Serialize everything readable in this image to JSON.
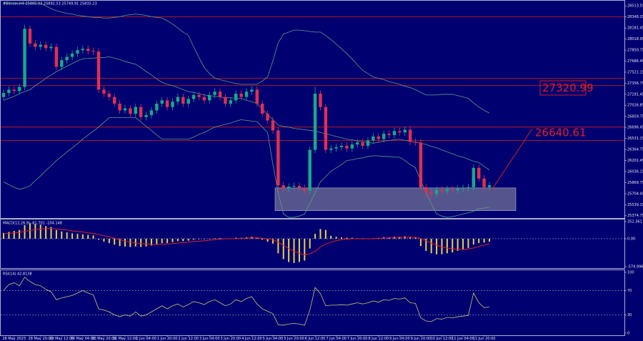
{
  "chart_data": [
    {
      "type": "candlestick",
      "title": "#Bitcoin,H4  25805.93 25892.53 25749.91 25835.23",
      "up_color": "#1aa88a",
      "down_color": "#e0304e",
      "band_color": "#5e9c82",
      "level_color": "#c01818",
      "zone_color": "#9a9aa8",
      "ylim": [
        25340,
        28600
      ],
      "yticks": [
        28513.55,
        28348.25,
        28181.45,
        28018.95,
        27850.75,
        27686.45,
        27521.15,
        27356.75,
        27191.45,
        27026.85,
        26859.75,
        26696.45,
        26531.15,
        26364.75,
        26201.45,
        26036.15,
        25869.75,
        25704.45,
        25539.15,
        25374.75
      ],
      "levels": [
        28350,
        27430,
        27320.99,
        26700,
        26500
      ],
      "zone": [
        25450,
        25790
      ],
      "annotations": [
        "27320.99",
        "26640.61"
      ],
      "open": [
        27150,
        27210,
        27260,
        27240,
        27300,
        28170,
        27950,
        27900,
        27930,
        27880,
        27900,
        27600,
        27700,
        27750,
        27800,
        27850,
        27870,
        27840,
        27830,
        27260,
        27200,
        27150,
        27050,
        26950,
        26980,
        26900,
        27000,
        26850,
        26880,
        26950,
        27050,
        27100,
        27000,
        27080,
        27150,
        27050,
        27120,
        27180,
        27150,
        27100,
        27180,
        27230,
        27150,
        27050,
        27100,
        27200,
        27150,
        27230,
        27260,
        27050,
        26900,
        26800,
        26650,
        25830,
        25780,
        25810,
        25820,
        25790,
        25750,
        26360,
        27200,
        27000,
        26360,
        26380,
        26400,
        26420,
        26380,
        26440,
        26470,
        26420,
        26500,
        26560,
        26520,
        26600,
        26580,
        26640,
        26620,
        26660,
        26480,
        26470,
        25800,
        25720,
        25700,
        25760,
        25740,
        25770,
        25760,
        25780,
        25790,
        25800,
        26090,
        25930,
        25800
      ],
      "high": [
        27260,
        27310,
        27310,
        27350,
        28230,
        28220,
        28000,
        27980,
        27980,
        27950,
        27950,
        27750,
        27800,
        27850,
        27900,
        27920,
        27920,
        27890,
        27880,
        27310,
        27250,
        27200,
        27100,
        27030,
        27030,
        27050,
        27050,
        26930,
        27000,
        27100,
        27150,
        27150,
        27130,
        27200,
        27200,
        27170,
        27230,
        27230,
        27200,
        27230,
        27280,
        27280,
        27200,
        27150,
        27250,
        27250,
        27280,
        27310,
        27310,
        27100,
        26950,
        26850,
        26700,
        25880,
        25860,
        25870,
        25870,
        25840,
        26410,
        27300,
        27250,
        27050,
        26430,
        26450,
        26470,
        26470,
        26490,
        26520,
        26520,
        26550,
        26610,
        26610,
        26650,
        26650,
        26690,
        26690,
        26710,
        26710,
        26530,
        26520,
        25850,
        25770,
        25810,
        25810,
        25820,
        25820,
        25830,
        25840,
        25850,
        26140,
        26140,
        25980,
        25880
      ],
      "low": [
        27100,
        27160,
        27190,
        27190,
        27250,
        27900,
        27850,
        27850,
        27830,
        27830,
        27550,
        27550,
        27650,
        27700,
        27750,
        27800,
        27790,
        27780,
        27210,
        27150,
        27100,
        27000,
        26900,
        26900,
        26850,
        26850,
        26800,
        26800,
        26830,
        26900,
        27000,
        26950,
        26950,
        27030,
        27000,
        27000,
        27070,
        27100,
        27050,
        27050,
        27130,
        27100,
        27000,
        27000,
        27050,
        27100,
        27100,
        27180,
        27000,
        26850,
        26750,
        26600,
        25760,
        25730,
        25730,
        25760,
        25740,
        25700,
        25700,
        26310,
        26950,
        26310,
        26310,
        26330,
        26350,
        26330,
        26330,
        26390,
        26370,
        26370,
        26450,
        26470,
        26470,
        26530,
        26530,
        26570,
        26570,
        26430,
        26420,
        25750,
        25640,
        25620,
        25650,
        25690,
        25690,
        25710,
        25710,
        25730,
        25740,
        25750,
        25880,
        25750,
        25750
      ],
      "close": [
        27210,
        27260,
        27240,
        27300,
        28170,
        27950,
        27900,
        27930,
        27880,
        27900,
        27600,
        27700,
        27750,
        27800,
        27850,
        27870,
        27840,
        27830,
        27260,
        27200,
        27150,
        27050,
        26950,
        26980,
        26900,
        27000,
        26850,
        26880,
        26950,
        27050,
        27100,
        27000,
        27080,
        27150,
        27050,
        27120,
        27180,
        27150,
        27100,
        27180,
        27230,
        27150,
        27050,
        27100,
        27200,
        27150,
        27230,
        27260,
        27050,
        26900,
        26800,
        26650,
        25830,
        25780,
        25810,
        25820,
        25790,
        25750,
        26360,
        27200,
        27000,
        26360,
        26380,
        26400,
        26420,
        26380,
        26440,
        26470,
        26420,
        26500,
        26560,
        26520,
        26600,
        26580,
        26640,
        26620,
        26660,
        26480,
        26470,
        25800,
        25720,
        25700,
        25760,
        25740,
        25770,
        25760,
        25780,
        25790,
        25800,
        26090,
        25930,
        25800,
        25830
      ],
      "bands": {
        "upper": [
          28550,
          28550,
          28550,
          28550,
          28550,
          28550,
          28550,
          28550,
          28510,
          28470,
          28440,
          28420,
          28400,
          28390,
          28370,
          28360,
          28350,
          28340,
          28340,
          28330,
          28330,
          28340,
          28350,
          28370,
          28380,
          28390,
          28380,
          28370,
          28350,
          28340,
          28330,
          28290,
          28240,
          28180,
          28120,
          28070,
          27900,
          27740,
          27590,
          27500,
          27430,
          27410,
          27390,
          27370,
          27350,
          27340,
          27340,
          27340,
          27340,
          27390,
          27450,
          27690,
          27960,
          28090,
          28120,
          28150,
          28150,
          28140,
          28130,
          28120,
          28120,
          28070,
          28010,
          27940,
          27870,
          27800,
          27720,
          27630,
          27550,
          27500,
          27450,
          27430,
          27410,
          27380,
          27360,
          27340,
          27310,
          27290,
          27260,
          27220,
          27180,
          27180,
          27180,
          27190,
          27190,
          27190,
          27170,
          27150,
          27130,
          27060,
          27000,
          26950,
          26910
        ],
        "middle": [
          27100,
          27130,
          27160,
          27200,
          27230,
          27260,
          27320,
          27370,
          27430,
          27480,
          27530,
          27570,
          27610,
          27650,
          27690,
          27720,
          27730,
          27730,
          27740,
          27740,
          27750,
          27730,
          27710,
          27680,
          27660,
          27640,
          27590,
          27530,
          27480,
          27420,
          27370,
          27340,
          27320,
          27290,
          27260,
          27230,
          27220,
          27200,
          27180,
          27170,
          27160,
          27150,
          27140,
          27140,
          27130,
          27130,
          27100,
          27080,
          27050,
          26970,
          26890,
          26810,
          26730,
          26710,
          26700,
          26680,
          26670,
          26660,
          26650,
          26640,
          26620,
          26600,
          26580,
          26560,
          26540,
          26520,
          26510,
          26490,
          26480,
          26470,
          26460,
          26470,
          26490,
          26500,
          26510,
          26520,
          26500,
          26490,
          26470,
          26460,
          26440,
          26410,
          26390,
          26360,
          26330,
          26300,
          26270,
          26250,
          26220,
          26190,
          26170,
          26110,
          26060
        ],
        "lower": [
          25880,
          25840,
          25800,
          25770,
          25790,
          25820,
          25900,
          25970,
          26050,
          26120,
          26200,
          26260,
          26330,
          26390,
          26450,
          26520,
          26580,
          26640,
          26700,
          26770,
          26840,
          26840,
          26840,
          26840,
          26840,
          26840,
          26780,
          26710,
          26650,
          26580,
          26520,
          26520,
          26520,
          26520,
          26520,
          26520,
          26550,
          26590,
          26620,
          26660,
          26700,
          26720,
          26740,
          26760,
          26790,
          26810,
          26800,
          26790,
          26780,
          26700,
          26620,
          26140,
          25720,
          25400,
          25350,
          25350,
          25370,
          25400,
          25560,
          25720,
          25880,
          25960,
          26040,
          26090,
          26140,
          26200,
          26210,
          26230,
          26240,
          26260,
          26270,
          26270,
          26260,
          26260,
          26250,
          26250,
          26200,
          26140,
          26090,
          25900,
          25720,
          25560,
          25400,
          25370,
          25350,
          25360,
          25380,
          25400,
          25420,
          25440,
          25480,
          25490,
          25500
        ]
      }
    },
    {
      "type": "bar",
      "title": "MACD(12,26,9) -61.701 -104.148",
      "color": "#e8d14a",
      "signal_color": "#e02020",
      "ylim": [
        -574.996,
        352.361
      ],
      "yticks": [
        352.361,
        {
          "value": 0,
          "label": "0.00"
        },
        -574.996
      ],
      "values": [
        120,
        140,
        160,
        180,
        280,
        320,
        300,
        290,
        260,
        240,
        180,
        150,
        130,
        110,
        100,
        90,
        80,
        70,
        -20,
        -60,
        -90,
        -120,
        -150,
        -160,
        -170,
        -160,
        -170,
        -160,
        -140,
        -110,
        -90,
        -90,
        -70,
        -50,
        -50,
        -40,
        -20,
        -10,
        -10,
        0,
        10,
        10,
        0,
        0,
        20,
        20,
        30,
        40,
        20,
        -20,
        -60,
        -100,
        -300,
        -420,
        -480,
        -500,
        -480,
        -450,
        -200,
        100,
        200,
        180,
        60,
        40,
        30,
        20,
        20,
        10,
        10,
        0,
        10,
        10,
        30,
        30,
        40,
        40,
        50,
        30,
        20,
        -150,
        -250,
        -300,
        -320,
        -320,
        -300,
        -280,
        -250,
        -220,
        -190,
        -120,
        -90,
        -80,
        -61.701
      ],
      "signal": [
        100,
        110,
        120,
        130,
        150,
        170,
        190,
        200,
        210,
        210,
        200,
        190,
        180,
        160,
        150,
        140,
        120,
        110,
        90,
        60,
        40,
        10,
        -20,
        -50,
        -70,
        -90,
        -100,
        -110,
        -120,
        -120,
        -110,
        -110,
        -100,
        -90,
        -80,
        -70,
        -60,
        -50,
        -40,
        -30,
        -20,
        -10,
        0,
        0,
        0,
        10,
        10,
        20,
        20,
        10,
        0,
        -20,
        -70,
        -140,
        -200,
        -260,
        -300,
        -330,
        -310,
        -260,
        -170,
        -110,
        -70,
        -40,
        -20,
        -10,
        0,
        0,
        0,
        0,
        0,
        10,
        10,
        20,
        20,
        30,
        30,
        30,
        30,
        0,
        -40,
        -90,
        -130,
        -170,
        -190,
        -210,
        -220,
        -220,
        -210,
        -190,
        -160,
        -130,
        -104.148
      ]
    },
    {
      "type": "line",
      "title": "RSI(14) 42.8138",
      "color": "#c8c86e",
      "ylim": [
        0,
        100
      ],
      "yticks": [
        100,
        70,
        30,
        0
      ],
      "values": [
        70,
        80,
        83,
        78,
        92,
        85,
        80,
        78,
        72,
        68,
        55,
        58,
        60,
        62,
        66,
        70,
        66,
        63,
        40,
        38,
        35,
        30,
        27,
        30,
        28,
        35,
        28,
        30,
        35,
        40,
        45,
        40,
        45,
        48,
        43,
        47,
        52,
        50,
        47,
        52,
        55,
        50,
        45,
        48,
        55,
        52,
        57,
        60,
        48,
        40,
        36,
        32,
        14,
        13,
        15,
        16,
        15,
        13,
        38,
        75,
        65,
        45,
        46,
        46,
        47,
        46,
        48,
        50,
        48,
        50,
        53,
        51,
        55,
        54,
        57,
        56,
        58,
        50,
        49,
        25,
        20,
        19,
        24,
        23,
        26,
        25,
        27,
        28,
        29,
        66,
        50,
        42,
        42.8138
      ],
      "categories": [
        null,
        null,
        "28 May 2023",
        null,
        null,
        null,
        null,
        "28 May 20:00",
        null,
        null,
        null,
        "29 May 12:00",
        null,
        null,
        null,
        "30 May 04:00",
        null,
        null,
        null,
        "30 May 20:00",
        null,
        null,
        null,
        "31 May 12:00",
        null,
        null,
        null,
        "1 Jun 04:00",
        null,
        null,
        null,
        "1 Jun 20:00",
        null,
        null,
        null,
        "2 Jun 12:00",
        null,
        null,
        null,
        "3 Jun 04:00",
        null,
        null,
        null,
        "3 Jun 20:00",
        null,
        null,
        null,
        "4 Jun 12:00",
        null,
        null,
        null,
        "5 Jun 04:00",
        null,
        null,
        null,
        "5 Jun 20:00",
        null,
        null,
        null,
        "6 Jun 12:00",
        null,
        null,
        null,
        "7 Jun 04:00",
        null,
        null,
        null,
        "7 Jun 20:00",
        null,
        null,
        null,
        "8 Jun 12:00",
        null,
        null,
        null,
        "9 Jun 04:00",
        null,
        null,
        null,
        "9 Jun 20:00",
        null,
        null,
        null,
        "10 Jun 12:00",
        null,
        null,
        null,
        "11 Jun 04:00",
        null,
        null,
        null,
        "11 Jun 20:00",
        null
      ]
    }
  ]
}
